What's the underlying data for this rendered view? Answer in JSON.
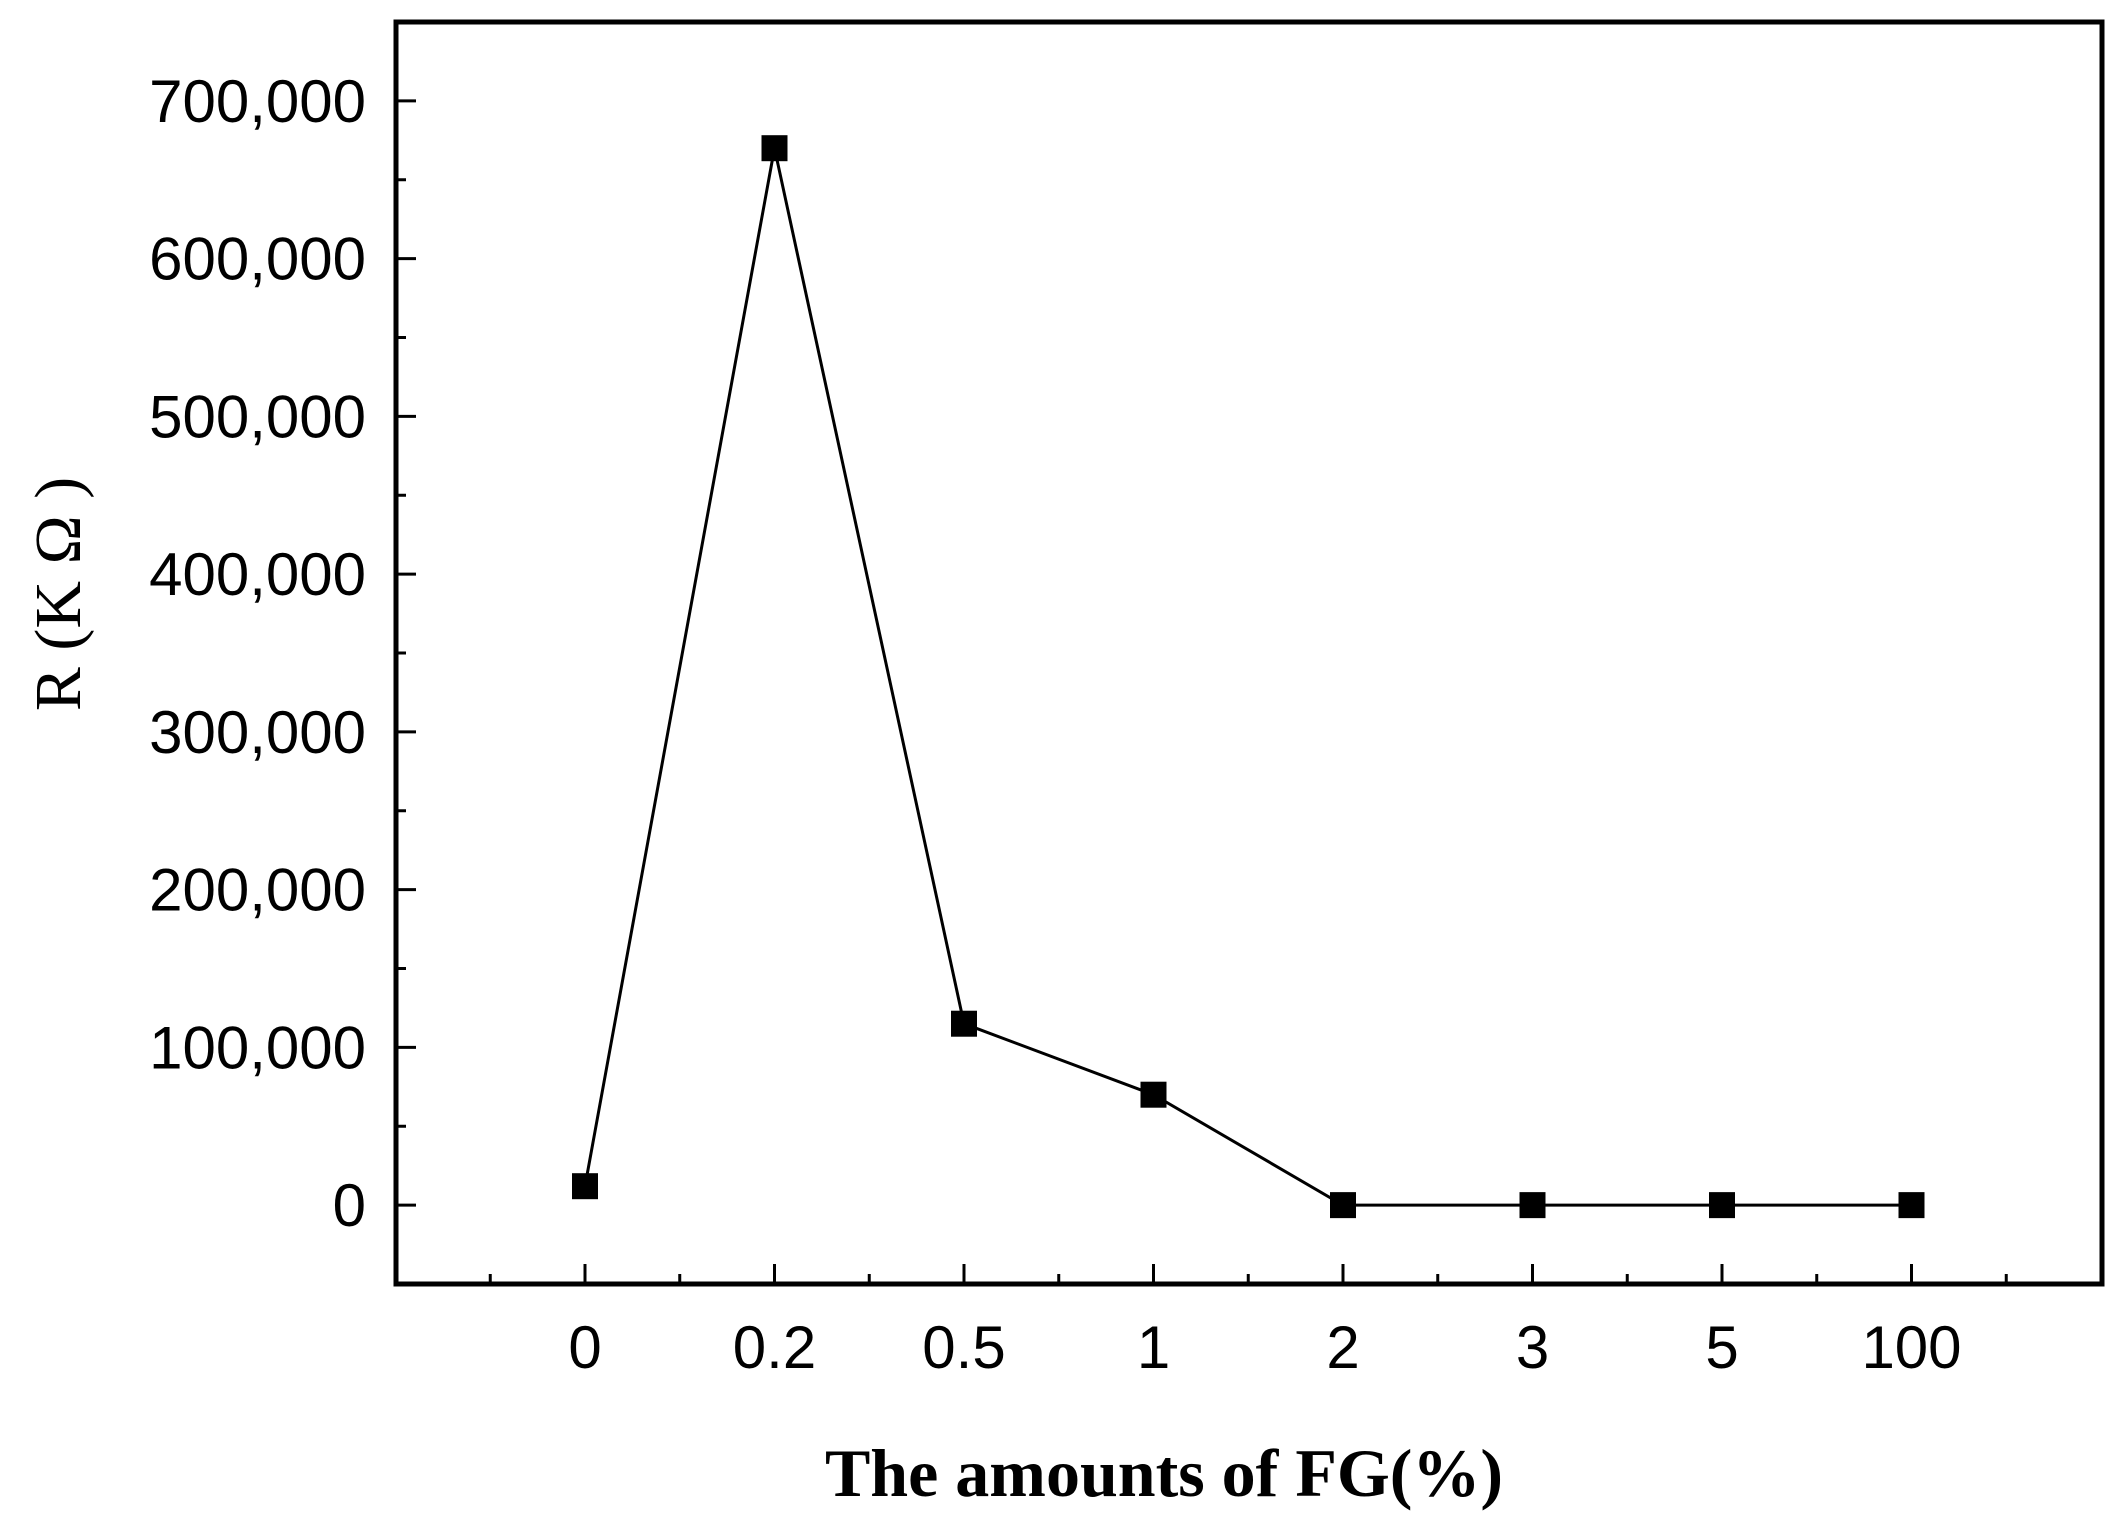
{
  "chart_data": {
    "type": "line",
    "title": "",
    "xlabel": "The amounts of FG(%)",
    "ylabel": "R (K Ω )",
    "categories": [
      "0",
      "0.2",
      "0.5",
      "1",
      "2",
      "3",
      "5",
      "100"
    ],
    "series": [
      {
        "values": [
          12000,
          670000,
          115000,
          70000,
          0,
          0,
          0,
          0
        ],
        "marker": "square",
        "color": "#000000"
      }
    ],
    "ylim": [
      -50000,
      750000
    ],
    "yticks": [
      0,
      100000,
      200000,
      300000,
      400000,
      500000,
      600000,
      700000
    ],
    "ytick_labels": [
      "0",
      "100,000",
      "200,000",
      "300,000",
      "400,000",
      "500,000",
      "600,000",
      "700,000"
    ],
    "grid": false,
    "legend": "none"
  }
}
